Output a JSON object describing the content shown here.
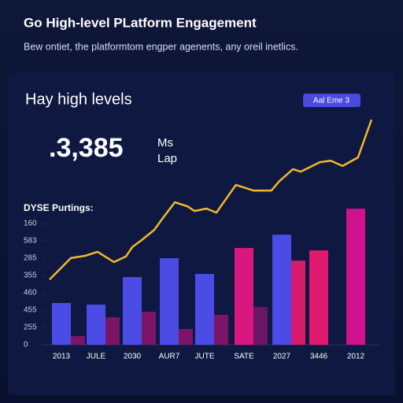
{
  "chart_data": {
    "type": "bar",
    "title": "Go High-level PLatform Engagement",
    "subtitle": "Bew ontiet, the platformtom engper agenents, any oreil inetlics.",
    "heading": "Hay high levels",
    "button": "Aal Eme 3",
    "kpi": ".3,385",
    "kpi_units": [
      "Ms",
      "Lap"
    ],
    "section_label": "DYSE Purtings:",
    "categories": [
      "2013",
      "JULE",
      "2030",
      "AUR7",
      "JUTE",
      "SATE",
      "2027",
      "3446",
      "2012"
    ],
    "series": [
      {
        "values": [
          2.41,
          2.32,
          3.91,
          5.0,
          4.09,
          5.59,
          6.36,
          5.45,
          7.86
        ],
        "colors": [
          "#4b4be6",
          "#4b4be6",
          "#4b4be6",
          "#4b4be6",
          "#4b4be6",
          "#d8177f",
          "#4b4be6",
          "#e01a6e",
          "#d0128e"
        ]
      },
      {
        "values": [
          0.5,
          1.59,
          1.91,
          0.91,
          1.73,
          2.18,
          4.86,
          null,
          null
        ],
        "colors": [
          "#7a1568",
          "#7a1568",
          "#7a1568",
          "#7a1568",
          "#7a1568",
          "#6b1565",
          "#d61c6a",
          "#7a1568",
          "#7a1568"
        ]
      }
    ],
    "line": {
      "color": "#f2b82a",
      "axis": "y2",
      "x": [
        0,
        6.6,
        11.0,
        14.9,
        20.0,
        23.7,
        25.7,
        28.6,
        32.5,
        35.0,
        38.9,
        42.8,
        45.0,
        48.7,
        51.8,
        57.9,
        63.3,
        68.9,
        71.4,
        75.6,
        78.0,
        80.0,
        83.9,
        87.3,
        91.0,
        95.8,
        100
      ],
      "values": [
        2.9,
        3.85,
        3.95,
        4.13,
        3.67,
        3.92,
        4.34,
        4.65,
        5.1,
        5.59,
        6.33,
        6.15,
        5.94,
        6.05,
        5.87,
        7.1,
        6.85,
        6.85,
        7.27,
        7.8,
        7.69,
        7.83,
        8.11,
        8.18,
        7.94,
        8.32,
        10.0
      ]
    },
    "xlim": [
      0,
      100
    ],
    "ylim": [
      0,
      8
    ],
    "yticks": [
      0,
      {
        "value": 1,
        "label": "255"
      },
      {
        "value": 2,
        "label": "455"
      },
      {
        "value": 3,
        "label": "460"
      },
      {
        "value": 4,
        "label": "355"
      },
      {
        "value": 5,
        "label": "285"
      },
      {
        "value": 6,
        "label": "583"
      },
      {
        "value": 7,
        "label": "160"
      }
    ],
    "y2lim": [
      0,
      10
    ]
  }
}
